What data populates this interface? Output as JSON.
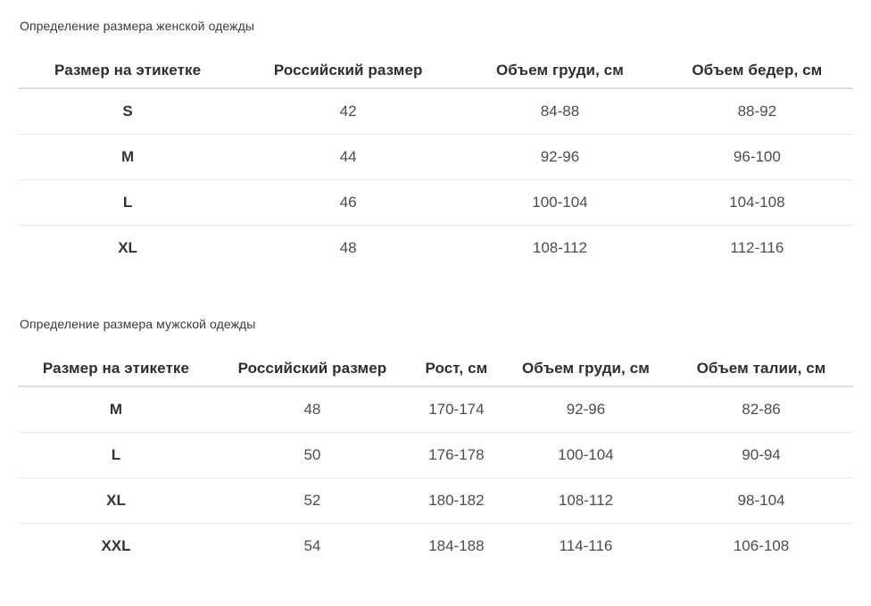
{
  "colors": {
    "background": "#ffffff",
    "title_text": "#3a3a3a",
    "header_text": "#2e2e2e",
    "cell_text": "#4d4d4d",
    "size_label_text": "#333333",
    "header_divider": "#dcdcdc",
    "row_divider": "#ebebeb"
  },
  "tables": [
    {
      "title": "Определение размера женской одежды",
      "columns": [
        "Размер на этикетке",
        "Российский размер",
        "Объем груди, см",
        "Объем бедер, см"
      ],
      "rows": [
        [
          "S",
          "42",
          "84-88",
          "88-92"
        ],
        [
          "M",
          "44",
          "92-96",
          "96-100"
        ],
        [
          "L",
          "46",
          "100-104",
          "104-108"
        ],
        [
          "XL",
          "48",
          "108-112",
          "112-116"
        ]
      ]
    },
    {
      "title": "Определение размера мужской одежды",
      "columns": [
        "Размер на этикетке",
        "Российский размер",
        "Рост, см",
        "Объем груди, см",
        "Объем талии, см"
      ],
      "rows": [
        [
          "M",
          "48",
          "170-174",
          "92-96",
          "82-86"
        ],
        [
          "L",
          "50",
          "176-178",
          "100-104",
          "90-94"
        ],
        [
          "XL",
          "52",
          "180-182",
          "108-112",
          "98-104"
        ],
        [
          "XXL",
          "54",
          "184-188",
          "114-116",
          "106-108"
        ]
      ]
    }
  ]
}
